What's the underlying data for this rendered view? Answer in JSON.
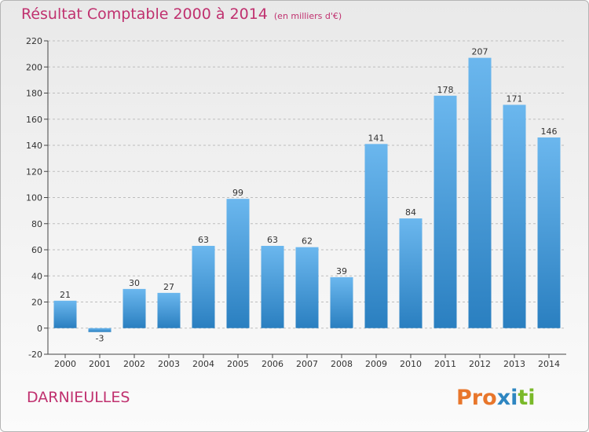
{
  "header": {
    "title": "Résultat Comptable 2000 à 2014",
    "unit": "(en milliers d'€)"
  },
  "commune": "DARNIEULLES",
  "logo": {
    "text": "Proxiti",
    "letter_colors": [
      "#e8762b",
      "#e8762b",
      "#e8762b",
      "#2e86c1",
      "#2e86c1",
      "#7ab929",
      "#7ab929"
    ]
  },
  "colors": {
    "title": "#c0316f",
    "bar_top": "#6bb7ee",
    "bar_bottom": "#2a7fc0",
    "grid": "#bdbdbd",
    "axis": "#444444",
    "text": "#333333"
  },
  "chart_data": {
    "type": "bar",
    "categories": [
      "2000",
      "2001",
      "2002",
      "2003",
      "2004",
      "2005",
      "2006",
      "2007",
      "2008",
      "2009",
      "2010",
      "2011",
      "2012",
      "2013",
      "2014"
    ],
    "values": [
      21,
      -3,
      30,
      27,
      63,
      99,
      63,
      62,
      39,
      141,
      84,
      178,
      207,
      171,
      146
    ],
    "ylim": [
      -20,
      220
    ],
    "yticks": [
      -20,
      0,
      20,
      40,
      60,
      80,
      100,
      120,
      140,
      160,
      180,
      200,
      220
    ],
    "grid": true,
    "title": "Résultat Comptable 2000 à 2014",
    "xlabel": "",
    "ylabel": ""
  }
}
